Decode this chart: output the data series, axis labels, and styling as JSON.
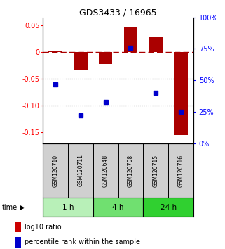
{
  "title": "GDS3433 / 16965",
  "samples": [
    "GSM120710",
    "GSM120711",
    "GSM120648",
    "GSM120708",
    "GSM120715",
    "GSM120716"
  ],
  "log10_ratio": [
    0.002,
    -0.033,
    -0.022,
    0.048,
    0.029,
    -0.155
  ],
  "percentile_rank": [
    47,
    22,
    33,
    76,
    40,
    25
  ],
  "time_groups": [
    {
      "label": "1 h",
      "start": 0,
      "end": 2,
      "color": "#b8f0b8"
    },
    {
      "label": "4 h",
      "start": 2,
      "end": 4,
      "color": "#70e070"
    },
    {
      "label": "24 h",
      "start": 4,
      "end": 6,
      "color": "#30d030"
    }
  ],
  "bar_color": "#aa0000",
  "dot_color": "#0000cc",
  "ylim_left": [
    -0.17,
    0.065
  ],
  "ylim_right": [
    0,
    100
  ],
  "yticks_left": [
    0.05,
    0.0,
    -0.05,
    -0.1,
    -0.15
  ],
  "yticks_right": [
    100,
    75,
    50,
    25,
    0
  ],
  "hline_y": 0.0,
  "dotted_lines": [
    -0.05,
    -0.1
  ],
  "bar_width": 0.55,
  "background_color": "#ffffff",
  "sample_box_color": "#d0d0d0",
  "sample_text_color": "#000000",
  "legend_log10_color": "#cc0000",
  "legend_pct_color": "#0000cc"
}
